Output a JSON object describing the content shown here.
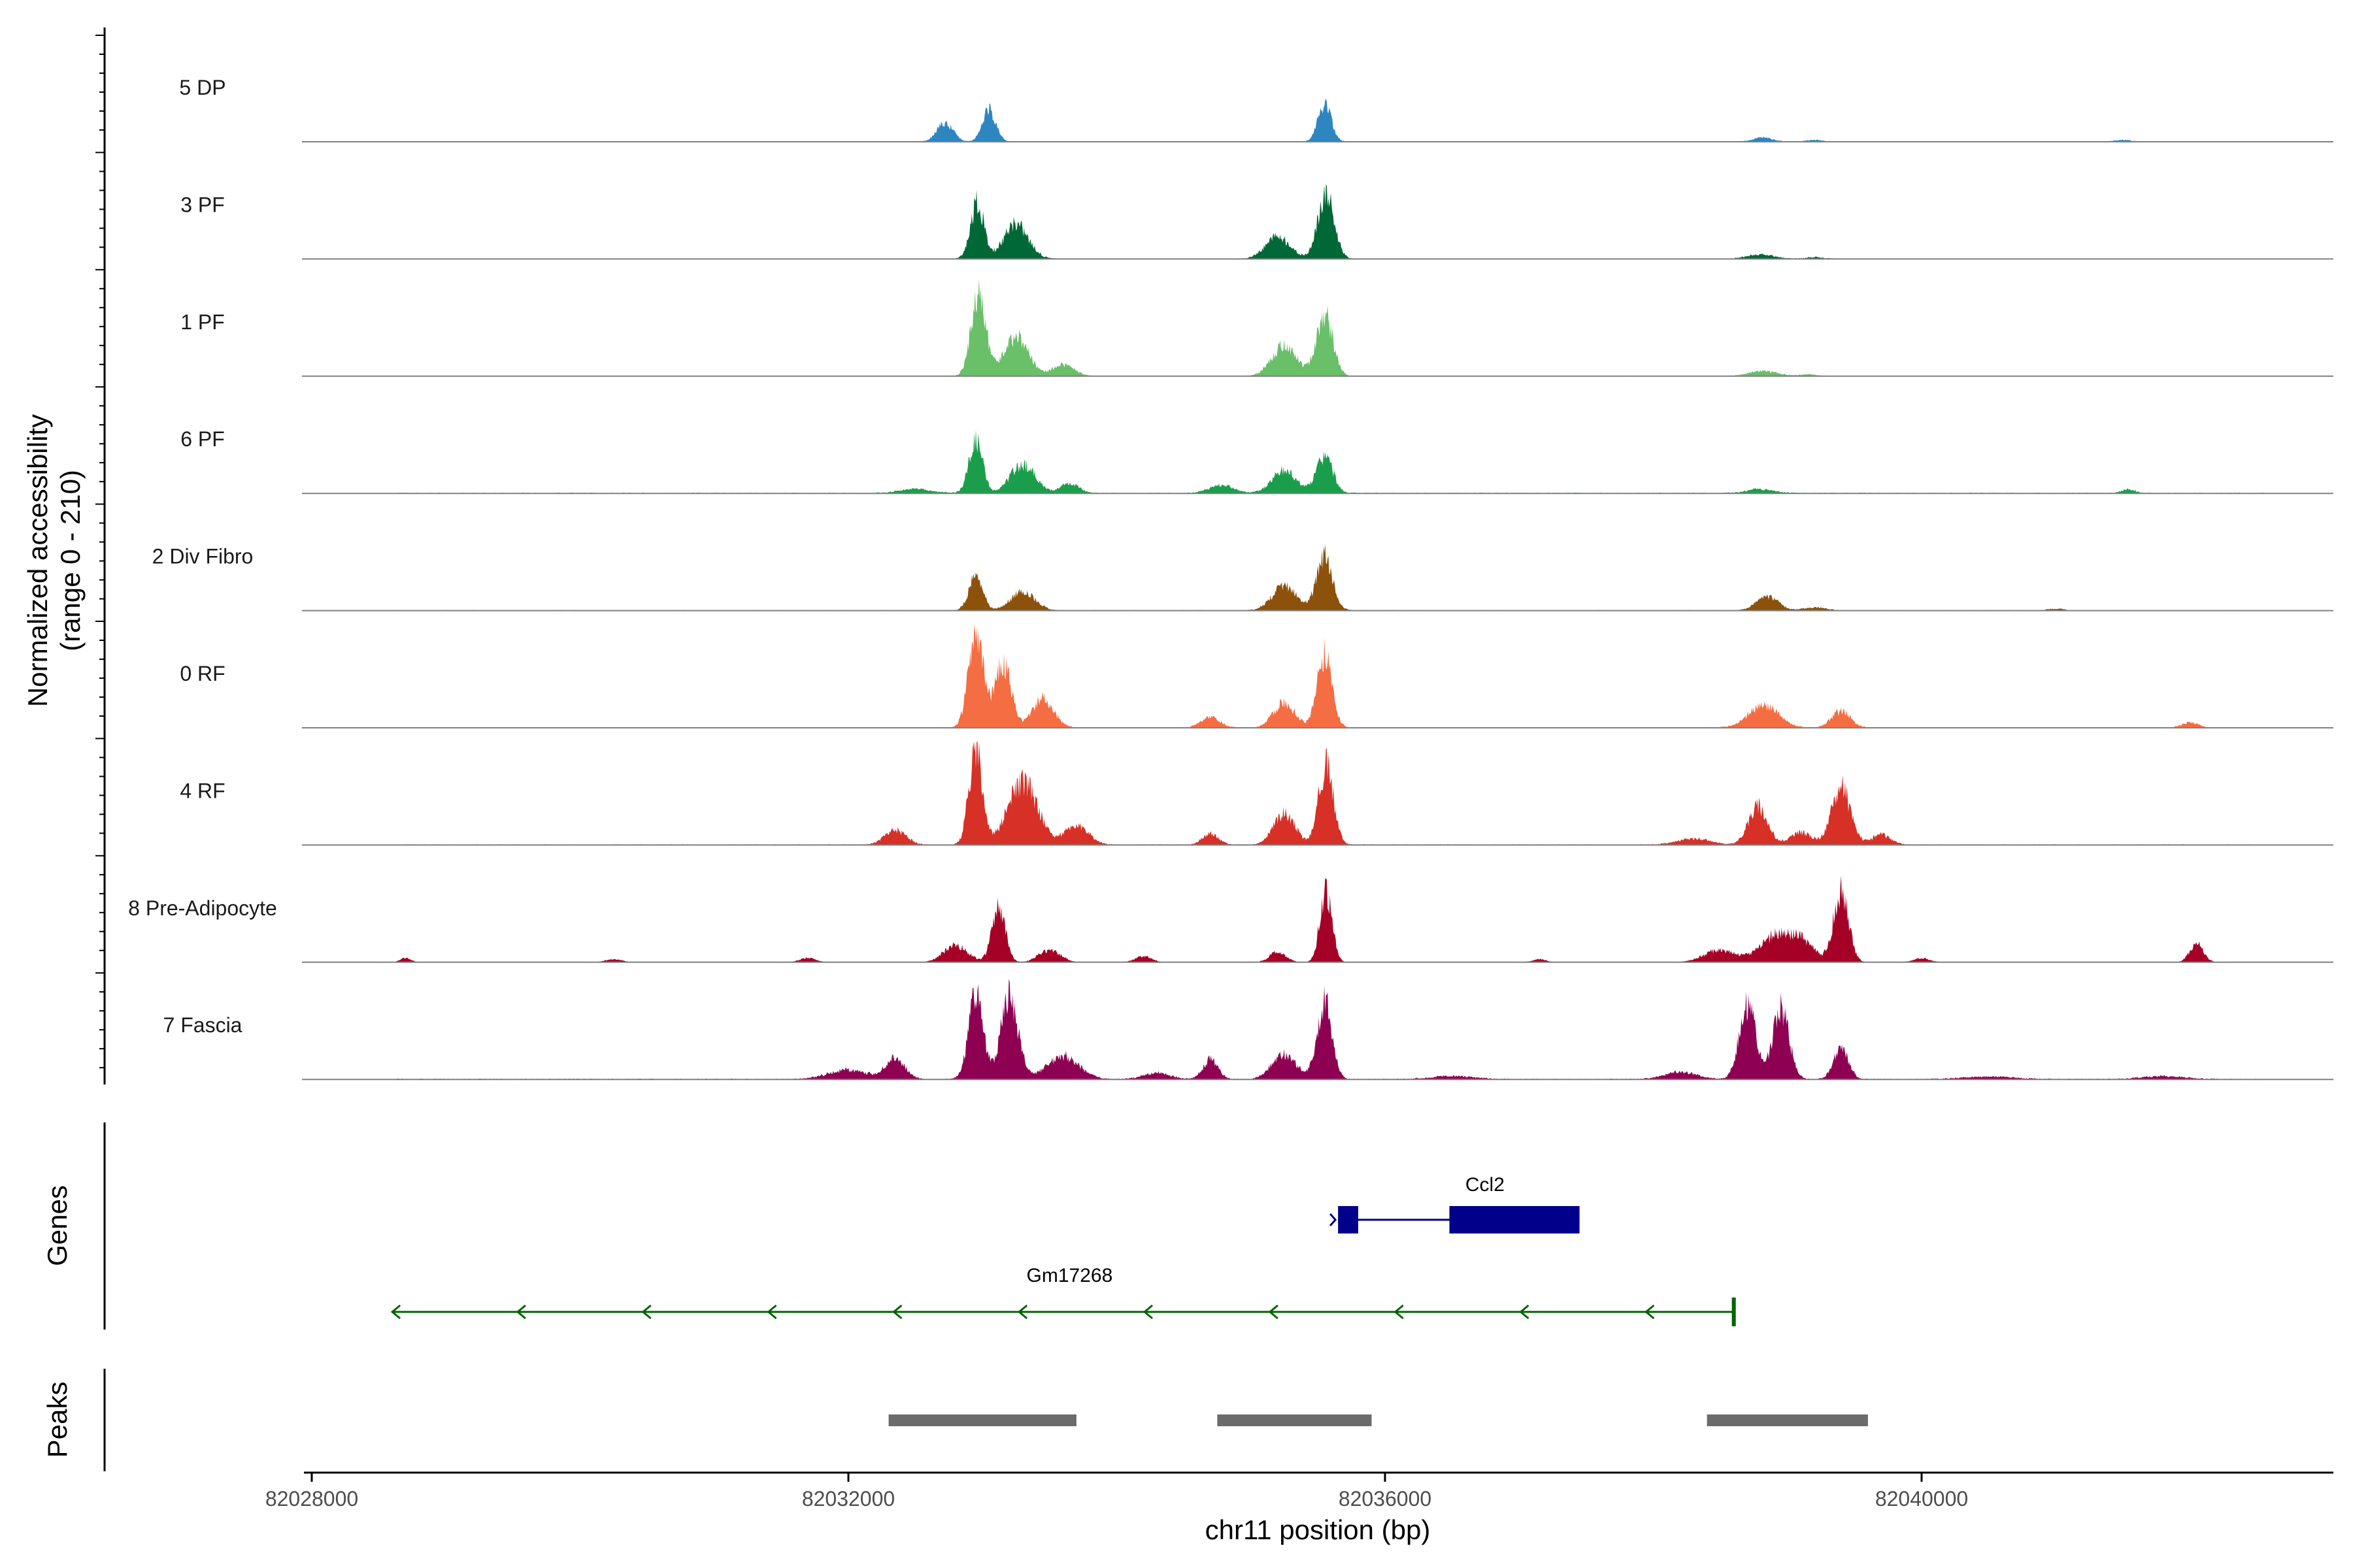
{
  "chart_data": {
    "type": "area",
    "title": "",
    "xlabel": "chr11 position (bp)",
    "ylabel": "Normalized accessibility",
    "ylabel_range": "(range 0 - 210)",
    "xlim": [
      82028000,
      82043200
    ],
    "ylim": [
      0,
      210
    ],
    "x_ticks": [
      82028000,
      82032000,
      82036000,
      82040000
    ],
    "x_tick_labels": [
      "82028000",
      "82032000",
      "82036000",
      "82040000"
    ],
    "series": [
      {
        "name": "5 DP",
        "color": "#2E86C1",
        "baseline": 2,
        "peaks": [
          [
            82032720,
            90,
            60
          ],
          [
            82033050,
            150,
            50
          ],
          [
            82035550,
            175,
            50
          ],
          [
            82038820,
            20,
            70
          ],
          [
            82039200,
            8,
            60
          ],
          [
            82041500,
            8,
            60
          ]
        ]
      },
      {
        "name": "3 PF",
        "color": "#006837",
        "baseline": 3,
        "peaks": [
          [
            82032960,
            270,
            50
          ],
          [
            82033250,
            170,
            90
          ],
          [
            82035200,
            110,
            90
          ],
          [
            82035560,
            320,
            60
          ],
          [
            82038800,
            20,
            100
          ],
          [
            82039200,
            8,
            60
          ]
        ]
      },
      {
        "name": "1 PF",
        "color": "#6ABF69",
        "baseline": 3,
        "peaks": [
          [
            82032970,
            380,
            55
          ],
          [
            82033250,
            190,
            90
          ],
          [
            82033600,
            55,
            80
          ],
          [
            82035250,
            150,
            90
          ],
          [
            82035550,
            300,
            60
          ],
          [
            82038820,
            25,
            100
          ],
          [
            82039150,
            8,
            60
          ]
        ]
      },
      {
        "name": "6 PF",
        "color": "#1B9E4B",
        "baseline": 4,
        "peaks": [
          [
            82032500,
            20,
            120
          ],
          [
            82032950,
            250,
            50
          ],
          [
            82033300,
            140,
            90
          ],
          [
            82033650,
            45,
            70
          ],
          [
            82034780,
            40,
            90
          ],
          [
            82035250,
            110,
            90
          ],
          [
            82035550,
            180,
            60
          ],
          [
            82038800,
            20,
            100
          ],
          [
            82041540,
            18,
            50
          ]
        ]
      },
      {
        "name": "2 Div Fibro",
        "color": "#8C510A",
        "baseline": 3,
        "peaks": [
          [
            82032950,
            170,
            50
          ],
          [
            82033300,
            90,
            90
          ],
          [
            82035250,
            120,
            90
          ],
          [
            82035550,
            260,
            60
          ],
          [
            82038850,
            70,
            80
          ],
          [
            82039200,
            15,
            80
          ],
          [
            82041000,
            8,
            60
          ]
        ]
      },
      {
        "name": "0 RF",
        "color": "#F46D43",
        "baseline": 3,
        "peaks": [
          [
            82032950,
            450,
            55
          ],
          [
            82033150,
            320,
            60
          ],
          [
            82033450,
            140,
            80
          ],
          [
            82034700,
            50,
            70
          ],
          [
            82035250,
            120,
            80
          ],
          [
            82035550,
            360,
            55
          ],
          [
            82038820,
            110,
            110
          ],
          [
            82039400,
            80,
            70
          ],
          [
            82042000,
            25,
            60
          ]
        ]
      },
      {
        "name": "4 RF",
        "color": "#D73027",
        "baseline": 4,
        "peaks": [
          [
            82032350,
            70,
            80
          ],
          [
            82032950,
            480,
            50
          ],
          [
            82033300,
            300,
            110
          ],
          [
            82033700,
            90,
            90
          ],
          [
            82034700,
            55,
            60
          ],
          [
            82035250,
            150,
            80
          ],
          [
            82035560,
            380,
            55
          ],
          [
            82038300,
            30,
            120
          ],
          [
            82038780,
            190,
            70
          ],
          [
            82039100,
            60,
            80
          ],
          [
            82039400,
            280,
            70
          ],
          [
            82039700,
            50,
            70
          ]
        ]
      },
      {
        "name": "8 Pre-Adipocyte",
        "color": "#A50026",
        "baseline": 0,
        "peaks": [
          [
            82028700,
            20,
            40
          ],
          [
            82030250,
            15,
            60
          ],
          [
            82031700,
            20,
            60
          ],
          [
            82032800,
            80,
            90
          ],
          [
            82033120,
            260,
            50
          ],
          [
            82033500,
            60,
            80
          ],
          [
            82034200,
            30,
            60
          ],
          [
            82035200,
            50,
            60
          ],
          [
            82035560,
            350,
            45
          ],
          [
            82037150,
            15,
            50
          ],
          [
            82038500,
            60,
            120
          ],
          [
            82038900,
            120,
            110
          ],
          [
            82039400,
            350,
            55
          ],
          [
            82039100,
            100,
            100
          ],
          [
            82040000,
            20,
            60
          ],
          [
            82042050,
            90,
            50
          ]
        ]
      },
      {
        "name": "7 Fascia",
        "color": "#8E0152",
        "baseline": 4,
        "peaks": [
          [
            82032000,
            45,
            150
          ],
          [
            82032350,
            100,
            70
          ],
          [
            82032950,
            400,
            55
          ],
          [
            82033200,
            390,
            65
          ],
          [
            82033600,
            110,
            120
          ],
          [
            82034300,
            30,
            100
          ],
          [
            82034700,
            95,
            55
          ],
          [
            82035550,
            390,
            55
          ],
          [
            82035250,
            120,
            90
          ],
          [
            82036500,
            15,
            160
          ],
          [
            82038200,
            35,
            120
          ],
          [
            82038700,
            360,
            60
          ],
          [
            82038950,
            350,
            60
          ],
          [
            82039400,
            150,
            55
          ],
          [
            82040500,
            12,
            200
          ],
          [
            82041800,
            15,
            160
          ]
        ]
      }
    ],
    "genes": [
      {
        "name": "Ccl2",
        "strand": "+",
        "start": 82035650,
        "end": 82037450,
        "color": "#00008B",
        "exons": [
          [
            82035650,
            82035800
          ],
          [
            82036480,
            82037450
          ]
        ]
      },
      {
        "name": "Gm17268",
        "strand": "-",
        "start": 82028600,
        "end": 82038600,
        "color": "#006400"
      }
    ],
    "peaks_track": {
      "label": "Peaks",
      "color": "#6B6B6B",
      "regions": [
        [
          82032300,
          82033700
        ],
        [
          82034750,
          82035900
        ],
        [
          82038400,
          82039600
        ]
      ]
    },
    "genes_track_label": "Genes"
  }
}
